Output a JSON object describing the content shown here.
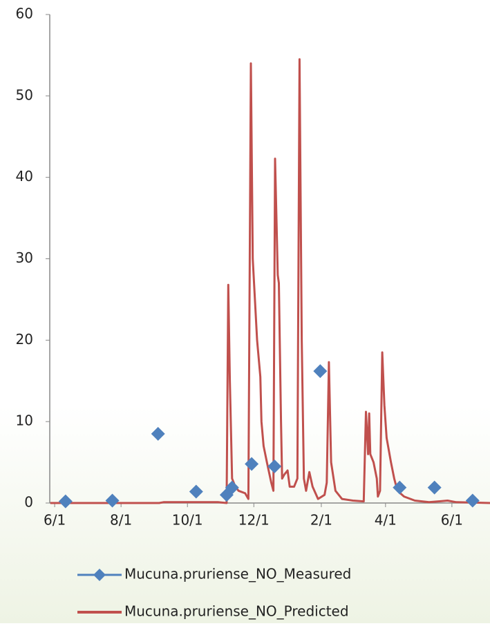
{
  "chart_data": {
    "type": "line-scatter",
    "series": [
      {
        "name": "Mucuna.pruriense_NO_Measured",
        "color": "#4f81bd",
        "kind": "scatter",
        "x": [
          10,
          53,
          95,
          130,
          158,
          163,
          181,
          202,
          244,
          317,
          349,
          384
        ],
        "values": [
          0.2,
          0.3,
          8.5,
          1.4,
          1.0,
          1.9,
          4.8,
          4.5,
          16.2,
          1.9,
          1.9,
          0.3
        ]
      },
      {
        "name": "Mucuna.pruriense_NO_Predicted",
        "color": "#c0504d",
        "kind": "line",
        "x": [
          -4,
          96,
          100,
          150,
          158,
          159.5,
          161,
          163,
          166,
          169,
          175,
          178,
          180.3,
          182,
          186,
          189,
          190,
          192,
          195,
          199,
          201,
          202.5,
          205,
          206,
          208,
          209,
          211,
          214,
          216,
          220,
          223,
          225,
          227,
          229,
          231,
          234,
          237,
          242,
          248,
          250,
          252,
          254,
          258,
          264,
          274,
          284,
          286,
          288,
          289,
          290,
          293,
          296,
          297,
          299,
          301,
          303,
          305,
          309,
          312,
          315,
          321,
          331,
          344,
          361,
          369,
          400
        ],
        "values": [
          0,
          0,
          0.1,
          0.1,
          0,
          26.8,
          15,
          3,
          2,
          1.5,
          1.2,
          0.5,
          54,
          30,
          20,
          15.5,
          10,
          7,
          5,
          2.5,
          1.5,
          42.3,
          28,
          27,
          10,
          3,
          3.5,
          4,
          2,
          2,
          3,
          54.5,
          20,
          3,
          1.5,
          3.8,
          2,
          0.5,
          1,
          2.5,
          17.3,
          5,
          1.5,
          0.5,
          0.3,
          0.2,
          11.2,
          6,
          11,
          6,
          5,
          3,
          0.8,
          1.5,
          18.5,
          12,
          8,
          5,
          3,
          1.5,
          0.8,
          0.3,
          0.1,
          0.3,
          0.1,
          0
        ]
      }
    ],
    "xlim": [
      -4.5,
      400
    ],
    "xticks": [
      {
        "value": 0,
        "label": "6/1"
      },
      {
        "value": 61,
        "label": "8/1"
      },
      {
        "value": 122,
        "label": "10/1"
      },
      {
        "value": 183,
        "label": "12/1"
      },
      {
        "value": 245,
        "label": "2/1"
      },
      {
        "value": 304,
        "label": "4/1"
      },
      {
        "value": 365,
        "label": "6/1"
      }
    ],
    "ylim": [
      0,
      60
    ],
    "yticks": [
      0,
      10,
      20,
      30,
      40,
      50,
      60
    ],
    "legend": "bottom"
  }
}
